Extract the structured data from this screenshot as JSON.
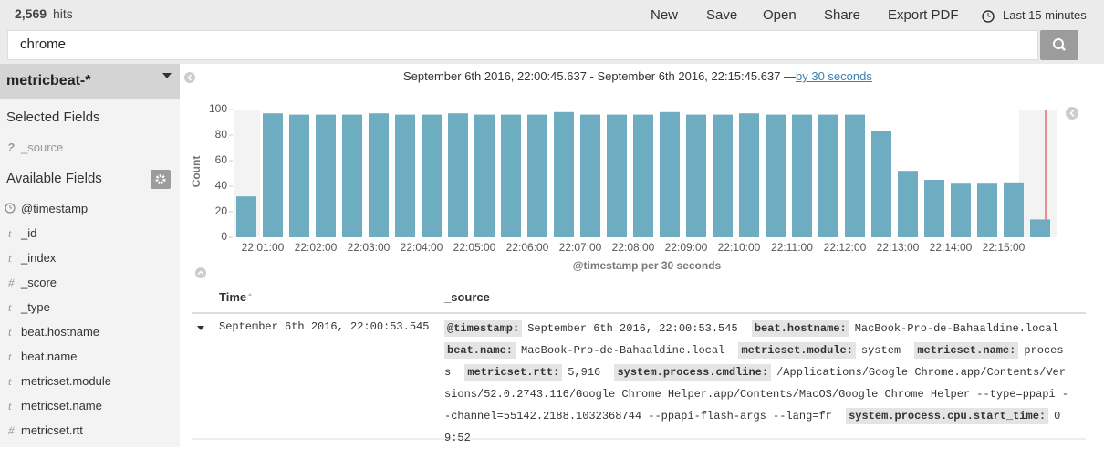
{
  "top_bar": {
    "hits_count": "2,569",
    "hits_label": "hits",
    "menu": [
      "New",
      "Save",
      "Open",
      "Share",
      "Export PDF"
    ],
    "time_range": "Last 15 minutes"
  },
  "search": {
    "query": "chrome"
  },
  "sidebar": {
    "index_pattern": "metricbeat-*",
    "selected_title": "Selected Fields",
    "selected_fields": [
      {
        "icon": "?",
        "name": "_source"
      }
    ],
    "available_title": "Available Fields",
    "available_fields": [
      {
        "name": "@timestamp"
      },
      {
        "icon": "t",
        "name": "_id"
      },
      {
        "icon": "t",
        "name": "_index"
      },
      {
        "icon": "#",
        "name": "_score"
      },
      {
        "icon": "t",
        "name": "_type"
      },
      {
        "icon": "t",
        "name": "beat.hostname"
      },
      {
        "icon": "t",
        "name": "beat.name"
      },
      {
        "icon": "t",
        "name": "metricset.module"
      },
      {
        "icon": "t",
        "name": "metricset.name"
      },
      {
        "icon": "#",
        "name": "metricset.rtt"
      }
    ]
  },
  "histogram_header": {
    "range_text": "September 6th 2016, 22:00:45.637 - September 6th 2016, 22:15:45.637 —",
    "interval_link": "by 30 seconds"
  },
  "chart_data": {
    "type": "bar",
    "categories": [
      null,
      "22:01:00",
      null,
      "22:02:00",
      null,
      "22:03:00",
      null,
      "22:04:00",
      null,
      "22:05:00",
      null,
      "22:06:00",
      null,
      "22:07:00",
      null,
      "22:08:00",
      null,
      "22:09:00",
      null,
      "22:10:00",
      null,
      "22:11:00",
      null,
      "22:12:00",
      null,
      "22:13:00",
      null,
      "22:14:00",
      null,
      "22:15:00",
      null
    ],
    "values": [
      32,
      97,
      96,
      96,
      96,
      97,
      96,
      96,
      97,
      96,
      96,
      96,
      98,
      96,
      96,
      96,
      98,
      96,
      96,
      97,
      96,
      96,
      96,
      96,
      83,
      52,
      45,
      42,
      42,
      43,
      14
    ],
    "color": "#6eadc1",
    "ylim": [
      0,
      100
    ],
    "yticks": [
      0,
      20,
      40,
      60,
      80,
      100
    ],
    "ylabel": "Count",
    "xlabel": "@timestamp per 30 seconds"
  },
  "table": {
    "headers": [
      "Time",
      "_source"
    ],
    "rows": [
      {
        "time": "September 6th 2016, 22:00:53.545",
        "fields": [
          {
            "key": "@timestamp:",
            "value": "September 6th 2016, 22:00:53.545"
          },
          {
            "key": "beat.hostname:",
            "value": "MacBook-Pro-de-Bahaaldine.local"
          },
          {
            "key": "beat.name:",
            "value": "MacBook-Pro-de-Bahaaldine.local"
          },
          {
            "key": "metricset.module:",
            "value": "system"
          },
          {
            "key": "metricset.name:",
            "value": "process"
          },
          {
            "key": "metricset.rtt:",
            "value": "5,916"
          },
          {
            "key": "system.process.cmdline:",
            "value": "/Applications/Google Chrome.app/Contents/Versions/52.0.2743.116/Google Chrome Helper.app/Contents/MacOS/Google Chrome Helper --type=ppapi --channel=55142.2188.1032368744 --ppapi-flash-args --lang=fr"
          },
          {
            "key": "system.process.cpu.start_time:",
            "value": "09:52"
          }
        ]
      }
    ]
  }
}
